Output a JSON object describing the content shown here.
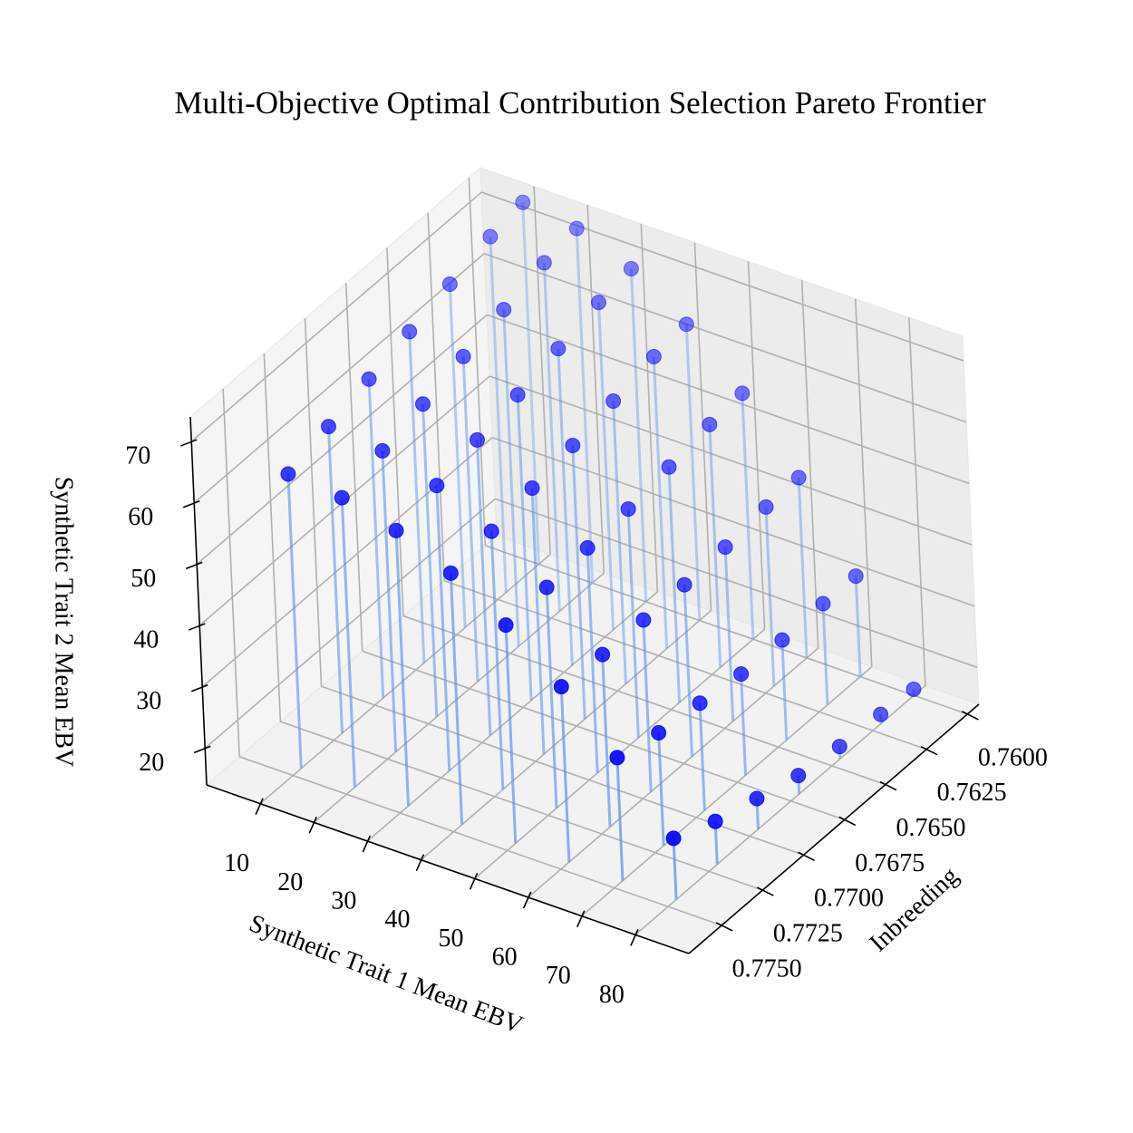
{
  "chart_data": {
    "type": "scatter3d",
    "title": "Multi-Objective Optimal Contribution Selection Pareto Frontier",
    "xlabel": "Synthetic Trait 1 Mean EBV",
    "ylabel": "Inbreeding",
    "zlabel": "Synthetic Trait 2 Mean EBV",
    "x": [
      10,
      20,
      30,
      40,
      50,
      60,
      70,
      80,
      10,
      20,
      30,
      40,
      50,
      60,
      70,
      80,
      10,
      20,
      30,
      40,
      50,
      60,
      70,
      80,
      10,
      20,
      30,
      40,
      50,
      60,
      70,
      80,
      10,
      20,
      30,
      40,
      50,
      60,
      70,
      80,
      10,
      20,
      30,
      40,
      50,
      60,
      70,
      80,
      10,
      20,
      30,
      40,
      50,
      60,
      70,
      80
    ],
    "y": [
      0.7745,
      0.7745,
      0.7745,
      0.7745,
      0.7745,
      0.7745,
      0.7745,
      0.7745,
      0.772,
      0.772,
      0.772,
      0.772,
      0.772,
      0.772,
      0.772,
      0.772,
      0.7695,
      0.7695,
      0.7695,
      0.7695,
      0.7695,
      0.7695,
      0.7695,
      0.7695,
      0.767,
      0.767,
      0.767,
      0.767,
      0.767,
      0.767,
      0.767,
      0.767,
      0.7645,
      0.7645,
      0.7645,
      0.7645,
      0.7645,
      0.7645,
      0.7645,
      0.7645,
      0.762,
      0.762,
      0.762,
      0.762,
      0.762,
      0.762,
      0.762,
      0.762,
      0.76,
      0.76,
      0.76,
      0.76,
      0.76,
      0.76,
      0.76,
      0.76
    ],
    "z": [
      62,
      61.2,
      58.9,
      55,
      49.6,
      42.6,
      34.1,
      24,
      64,
      63.1,
      60.5,
      56.1,
      50,
      42.1,
      32.4,
      21,
      66,
      65,
      62.2,
      57.4,
      50.7,
      42,
      31.5,
      19,
      68,
      67,
      63.8,
      58.6,
      51.3,
      42,
      30.5,
      17,
      70,
      68.9,
      65.6,
      60.1,
      52.4,
      42.4,
      30.3,
      16,
      72,
      70.8,
      67.4,
      61.6,
      53.6,
      43.2,
      30.5,
      15.5,
      73,
      71.8,
      68.3,
      62.3,
      54.1,
      43.4,
      30.4,
      15
    ],
    "color": "#0000ff",
    "stem_color": "#6495ed",
    "xlim": [
      0,
      90
    ],
    "ylim": [
      0.7593,
      0.777
    ],
    "zlim": [
      14,
      74
    ],
    "xticks": [
      10,
      20,
      30,
      40,
      50,
      60,
      70,
      80
    ],
    "yticks": [
      {
        "value": 0.76,
        "label": "0.7600"
      },
      {
        "value": 0.7625,
        "label": "0.7625"
      },
      {
        "value": 0.765,
        "label": "0.7650"
      },
      {
        "value": 0.7675,
        "label": "0.7675"
      },
      {
        "value": 0.77,
        "label": "0.7700"
      },
      {
        "value": 0.7725,
        "label": "0.7725"
      },
      {
        "value": 0.775,
        "label": "0.7750"
      }
    ],
    "zticks": [
      20,
      30,
      40,
      50,
      60,
      70
    ],
    "grid": true
  }
}
